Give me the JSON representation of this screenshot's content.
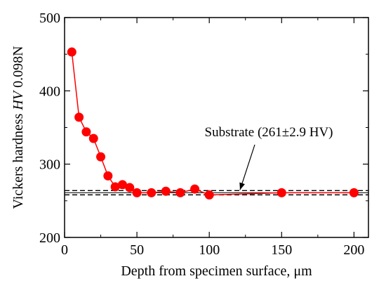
{
  "chart_data": {
    "type": "scatter",
    "title": "",
    "xlabel": "Depth from specimen surface, μm",
    "ylabel_prefix": "Vickers hardness ",
    "ylabel_italic": "HV",
    "ylabel_suffix": " 0.098N",
    "xlim": [
      0,
      210
    ],
    "ylim": [
      200,
      500
    ],
    "xticks": [
      0,
      50,
      100,
      150,
      200
    ],
    "yticks": [
      200,
      300,
      400,
      500
    ],
    "grid": false,
    "series": [
      {
        "color": "#ff0000",
        "marker": "circle",
        "x": [
          5,
          10,
          15,
          20,
          25,
          30,
          35,
          40,
          45,
          50,
          60,
          70,
          80,
          90,
          100,
          150,
          200
        ],
        "y": [
          453,
          364,
          344,
          335,
          310,
          284,
          269,
          272,
          268,
          261,
          261,
          263,
          261,
          266,
          258,
          261,
          261
        ]
      }
    ],
    "reference": {
      "mean": 261,
      "band": 2.9,
      "label": "Substrate (261±2.9 HV)"
    }
  }
}
